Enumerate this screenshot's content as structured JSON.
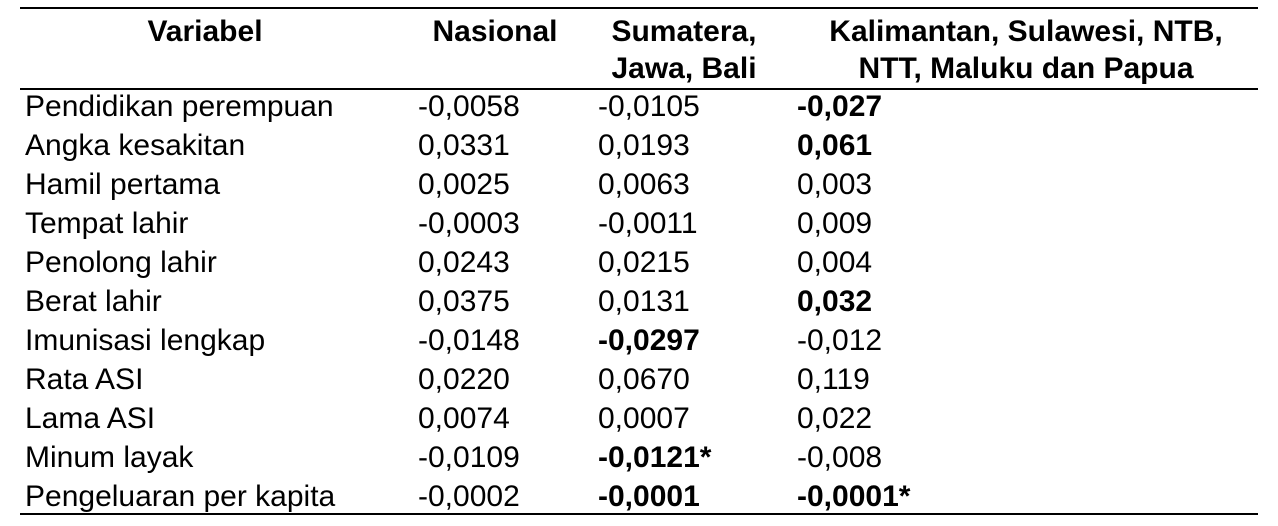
{
  "table": {
    "header": [
      [
        "Variabel"
      ],
      [
        "Nasional"
      ],
      [
        "Sumatera,",
        "Jawa, Bali"
      ],
      [
        "Kalimantan, Sulawesi, NTB,",
        "NTT, Maluku dan Papua"
      ]
    ],
    "rows": [
      {
        "cells": [
          "Pendidikan perempuan",
          "-0,0058",
          "-0,0105",
          "-0,027"
        ],
        "bold": [
          3
        ]
      },
      {
        "cells": [
          "Angka kesakitan",
          "0,0331",
          "0,0193",
          "0,061"
        ],
        "bold": [
          3
        ]
      },
      {
        "cells": [
          "Hamil pertama",
          "0,0025",
          "0,0063",
          "0,003"
        ],
        "bold": []
      },
      {
        "cells": [
          "Tempat lahir",
          "-0,0003",
          "-0,0011",
          "0,009"
        ],
        "bold": []
      },
      {
        "cells": [
          "Penolong lahir",
          "0,0243",
          "0,0215",
          "0,004"
        ],
        "bold": []
      },
      {
        "cells": [
          "Berat lahir",
          "0,0375",
          "0,0131",
          "0,032"
        ],
        "bold": [
          3
        ]
      },
      {
        "cells": [
          "Imunisasi lengkap",
          "-0,0148",
          "-0,0297",
          "-0,012"
        ],
        "bold": [
          2
        ]
      },
      {
        "cells": [
          "Rata ASI",
          "0,0220",
          "0,0670",
          "0,119"
        ],
        "bold": []
      },
      {
        "cells": [
          "Lama ASI",
          "0,0074",
          "0,0007",
          "0,022"
        ],
        "bold": []
      },
      {
        "cells": [
          "Minum layak",
          "-0,0109",
          "-0,0121*",
          "-0,008"
        ],
        "bold": [
          2
        ]
      },
      {
        "cells": [
          "Pengeluaran per kapita",
          "-0,0002",
          "-0,0001",
          "-0,0001*"
        ],
        "bold": [
          2,
          3
        ]
      }
    ]
  }
}
